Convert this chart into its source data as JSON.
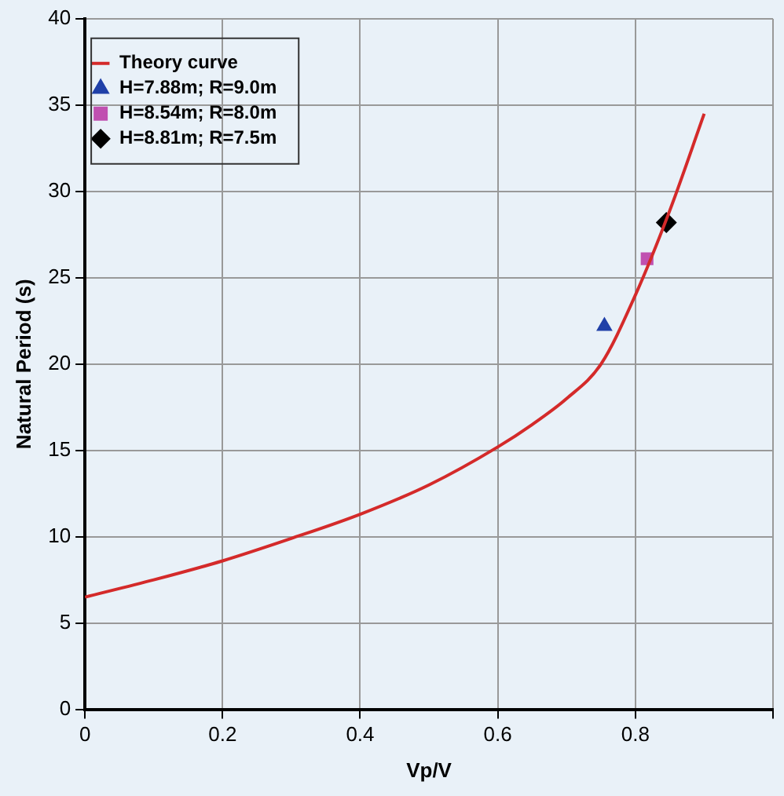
{
  "chart_data": {
    "type": "line",
    "xlabel": "Vp/V",
    "ylabel": "Natural Period (s)",
    "xlim": [
      0,
      1
    ],
    "xticks": [
      0,
      0.2,
      0.4,
      0.6,
      0.8,
      {
        "value": 1,
        "label": null
      }
    ],
    "ylim": [
      0,
      40
    ],
    "yticks": [
      0,
      5,
      10,
      15,
      20,
      25,
      30,
      35,
      40
    ],
    "grid": true,
    "legend": "top left",
    "series": [
      {
        "name": "Theory curve",
        "type": "line",
        "color": "#d42a2a",
        "marker": "none",
        "x": [
          0,
          0.1,
          0.2,
          0.3,
          0.4,
          0.5,
          0.6,
          0.65,
          0.7,
          0.75,
          0.8,
          0.85,
          0.9
        ],
        "values": [
          6.5,
          7.5,
          8.6,
          9.9,
          11.3,
          13,
          15.2,
          16.5,
          18,
          20,
          24,
          28.9,
          34.5
        ]
      },
      {
        "name": "H=7.88m; R=9.0m",
        "type": "scatter",
        "color": "#2040a8",
        "marker": "triangle",
        "x": [
          0.755
        ],
        "values": [
          22.2
        ]
      },
      {
        "name": "H=8.54m; R=8.0m",
        "type": "scatter",
        "color": "#c050b0",
        "marker": "square",
        "x": [
          0.817
        ],
        "values": [
          26.1
        ]
      },
      {
        "name": "H=8.81m; R=7.5m",
        "type": "scatter",
        "color": "#000000",
        "marker": "diamond",
        "x": [
          0.845
        ],
        "values": [
          28.2
        ]
      }
    ]
  }
}
